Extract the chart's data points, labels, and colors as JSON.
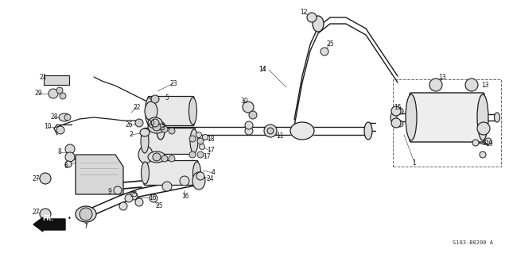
{
  "bg_color": "#ffffff",
  "diagram_code": "S103-B0200 A",
  "dark": "#1a1a1a",
  "gray": "#888888",
  "light_gray": "#cccccc",
  "mid_gray": "#aaaaaa"
}
